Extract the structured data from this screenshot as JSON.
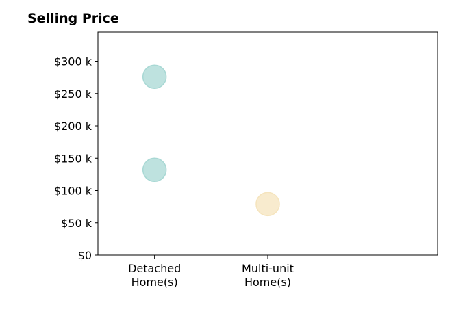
{
  "chart_data": {
    "type": "scatter",
    "title": "Selling Price",
    "xlabel": "",
    "ylabel": "",
    "categories": [
      [
        "Detached",
        "Home(s)"
      ],
      [
        "Multi-unit",
        "Home(s)"
      ]
    ],
    "xlim": [
      -0.5,
      2.5
    ],
    "ylim": [
      0,
      345000
    ],
    "yticks": [
      0,
      50000,
      100000,
      150000,
      200000,
      250000,
      300000
    ],
    "ytick_labels": [
      "$0",
      "$50 k",
      "$100 k",
      "$150 k",
      "$200 k",
      "$250 k",
      "$300 k"
    ],
    "grid": false,
    "points": [
      {
        "category": 0,
        "y": 276000,
        "color": "#a8d8d4"
      },
      {
        "category": 0,
        "y": 132000,
        "color": "#a8d8d4"
      },
      {
        "category": 1,
        "y": 79000,
        "color": "#f5e4bd"
      }
    ],
    "colors": {
      "detached": "#a8d8d4",
      "multi_unit": "#f5e4bd"
    }
  }
}
